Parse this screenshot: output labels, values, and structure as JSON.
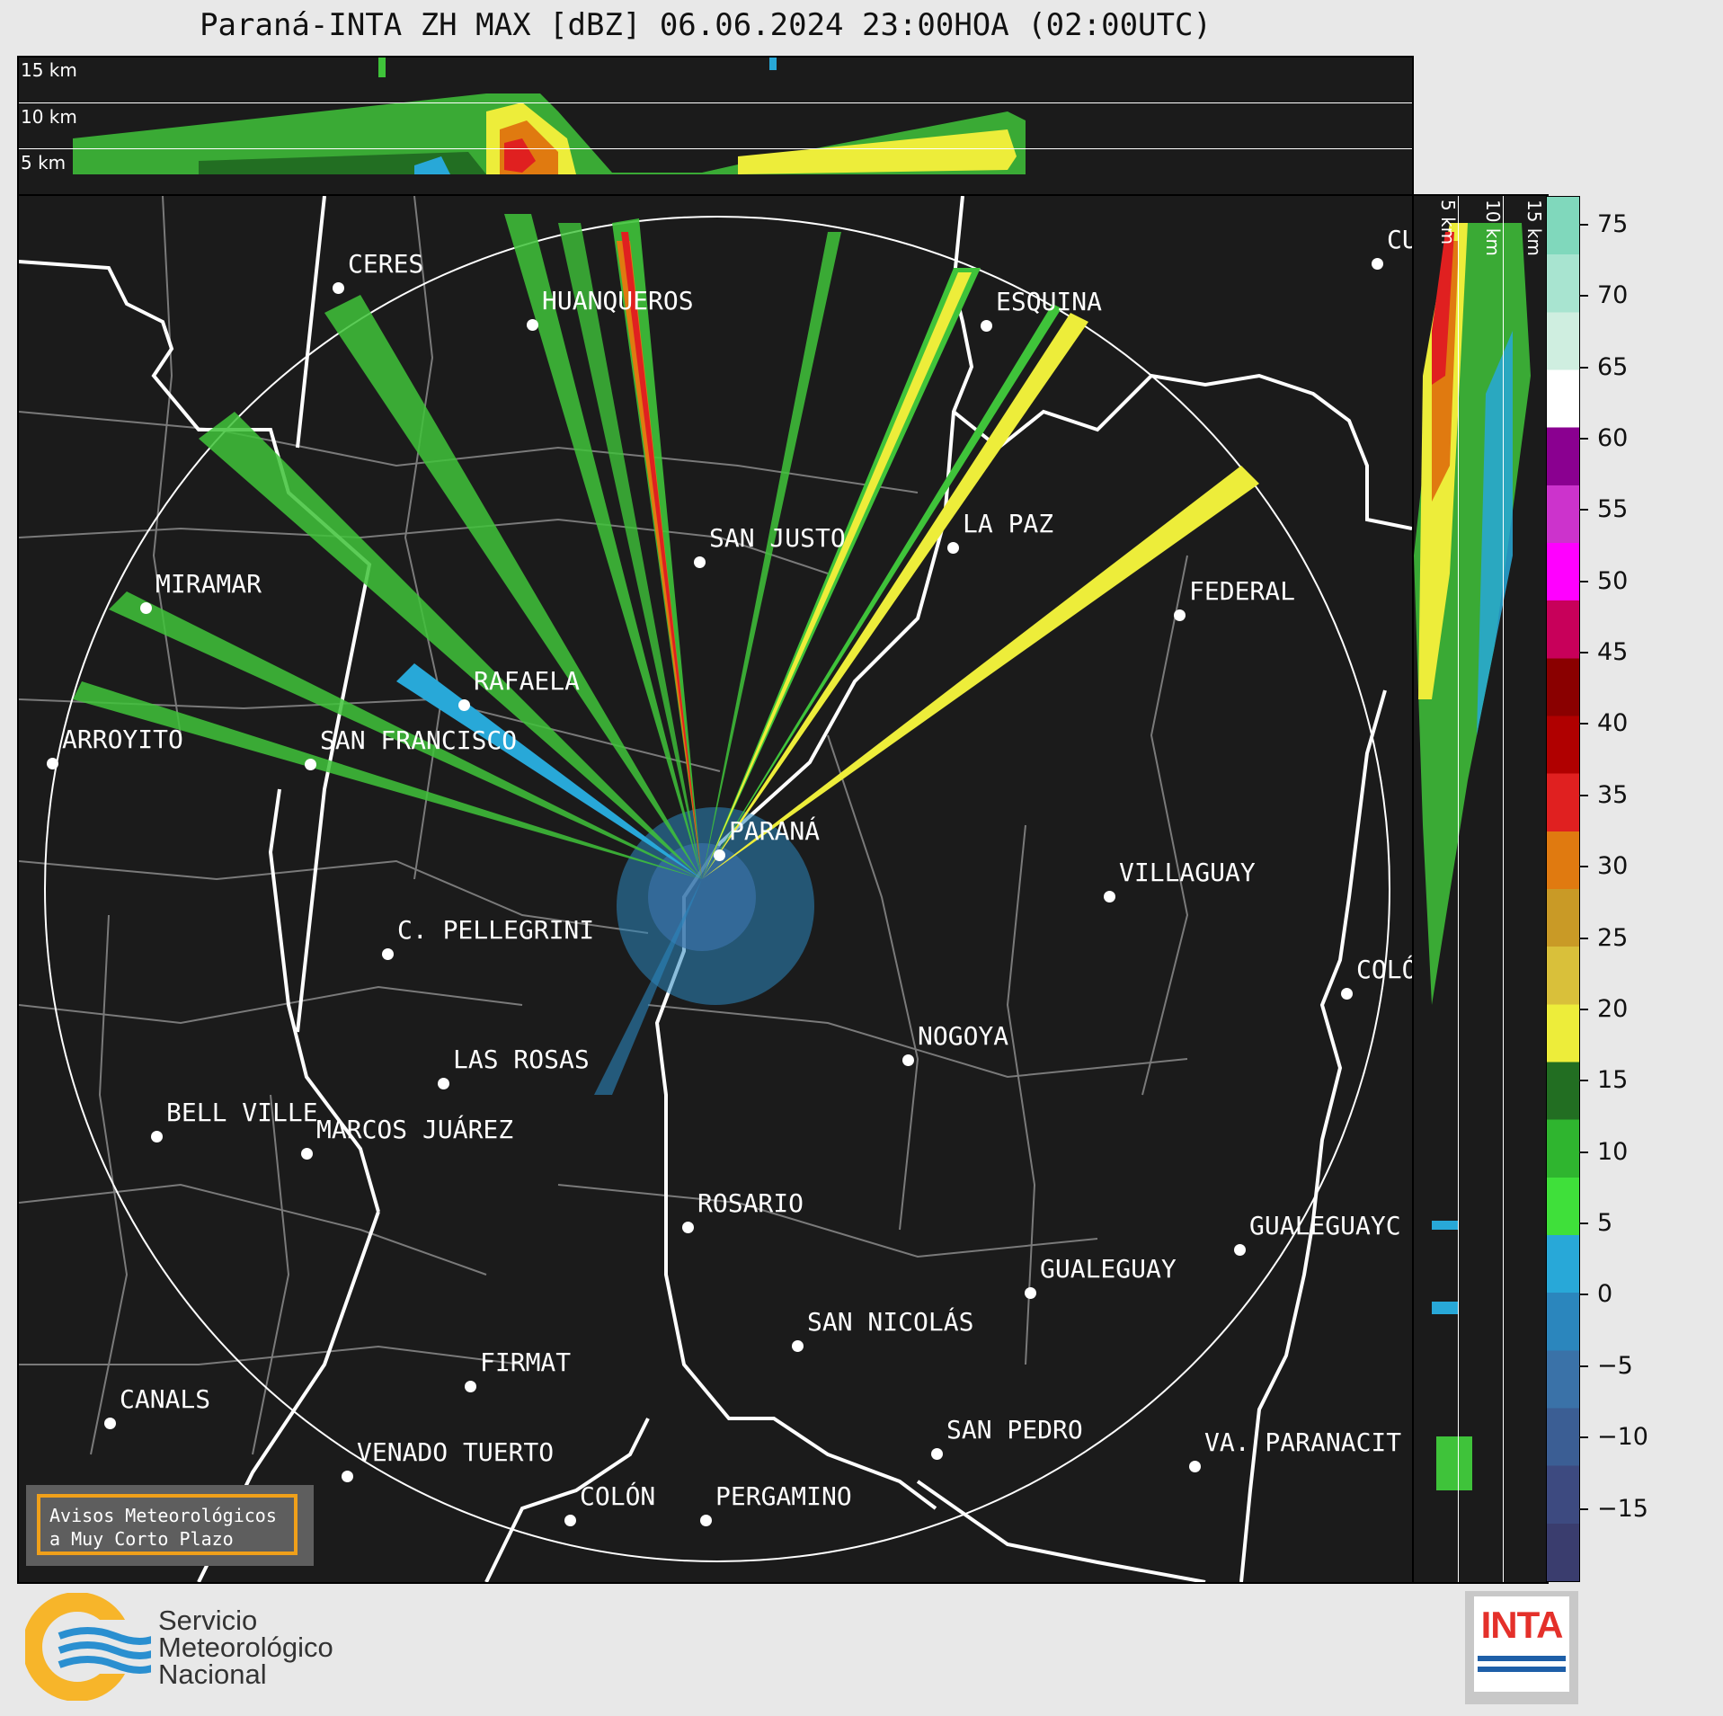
{
  "title": "Paraná-INTA ZH MAX [dBZ] 06.06.2024 23:00HOA (02:00UTC)",
  "height_labels": [
    "15 km",
    "10 km",
    "5 km"
  ],
  "colorbar": {
    "ticks": [
      "75",
      "70",
      "65",
      "60",
      "55",
      "50",
      "45",
      "40",
      "35",
      "30",
      "25",
      "20",
      "15",
      "10",
      "5",
      "0",
      "−5",
      "−10",
      "−15"
    ],
    "range": [
      -20,
      77
    ],
    "stops": [
      "#3a3d6e",
      "#3d4a80",
      "#3b5e94",
      "#3a72a8",
      "#2b86bd",
      "#28a8d8",
      "#3fe03a",
      "#2fb52f",
      "#226e22",
      "#eded3a",
      "#d9c03a",
      "#c99a26",
      "#e07a10",
      "#e02020",
      "#b00000",
      "#8a0000",
      "#c8005a",
      "#ff00ff",
      "#cc33cc",
      "#8a0090",
      "#ffffff",
      "#cfeee0",
      "#a8e4d0",
      "#80d8bc"
    ]
  },
  "cities": [
    {
      "name": "CERES"
    },
    {
      "name": "HUANQUEROS"
    },
    {
      "name": "ESQUINA"
    },
    {
      "name": "CU"
    },
    {
      "name": "LA PAZ"
    },
    {
      "name": "SAN JUSTO"
    },
    {
      "name": "MIRAMAR"
    },
    {
      "name": "FEDERAL"
    },
    {
      "name": "RAFAELA"
    },
    {
      "name": "ARROYITO"
    },
    {
      "name": "SAN FRANCISCO"
    },
    {
      "name": "PARANÁ"
    },
    {
      "name": "VILLAGUAY"
    },
    {
      "name": "C. PELLEGRINI"
    },
    {
      "name": "COLÓ"
    },
    {
      "name": "NOGOYA"
    },
    {
      "name": "LAS ROSAS"
    },
    {
      "name": "BELL VILLE"
    },
    {
      "name": "MARCOS JUÁREZ"
    },
    {
      "name": "ROSARIO"
    },
    {
      "name": "GUALEGUAYC"
    },
    {
      "name": "GUALEGUAY"
    },
    {
      "name": "SAN NICOLÁS"
    },
    {
      "name": "FIRMAT"
    },
    {
      "name": "CANALS"
    },
    {
      "name": "SAN PEDRO"
    },
    {
      "name": "VA. PARANACIT"
    },
    {
      "name": "VENADO TUERTO"
    },
    {
      "name": "COLÓN"
    },
    {
      "name": "PERGAMINO"
    }
  ],
  "avisos": {
    "line1": "Avisos Meteorológicos",
    "line2": "a Muy Corto Plazo"
  },
  "smn": {
    "line1": "Servicio",
    "line2": "Meteorológico",
    "line3": "Nacional"
  },
  "inta_logo": "INTA"
}
